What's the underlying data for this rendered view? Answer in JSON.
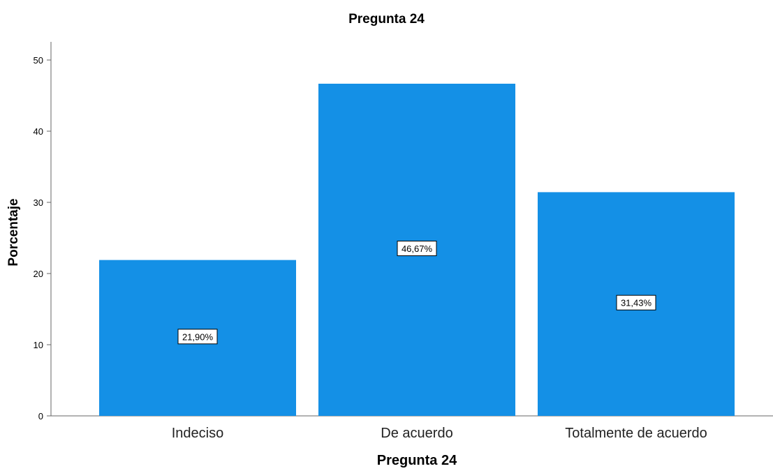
{
  "chart_data": {
    "type": "bar",
    "title": "Pregunta 24",
    "xlabel": "Pregunta 24",
    "ylabel": "Porcentaje",
    "categories": [
      "Indeciso",
      "De acuerdo",
      "Totalmente de acuerdo"
    ],
    "values": [
      21.9,
      46.67,
      31.43
    ],
    "data_labels": [
      "21,90%",
      "46,67%",
      "31,43%"
    ],
    "ylim": [
      0,
      50
    ],
    "yticks": [
      "0",
      "10",
      "20",
      "30",
      "40",
      "50"
    ],
    "grid": false,
    "legend": "none",
    "bar_color": "#1490e6"
  }
}
